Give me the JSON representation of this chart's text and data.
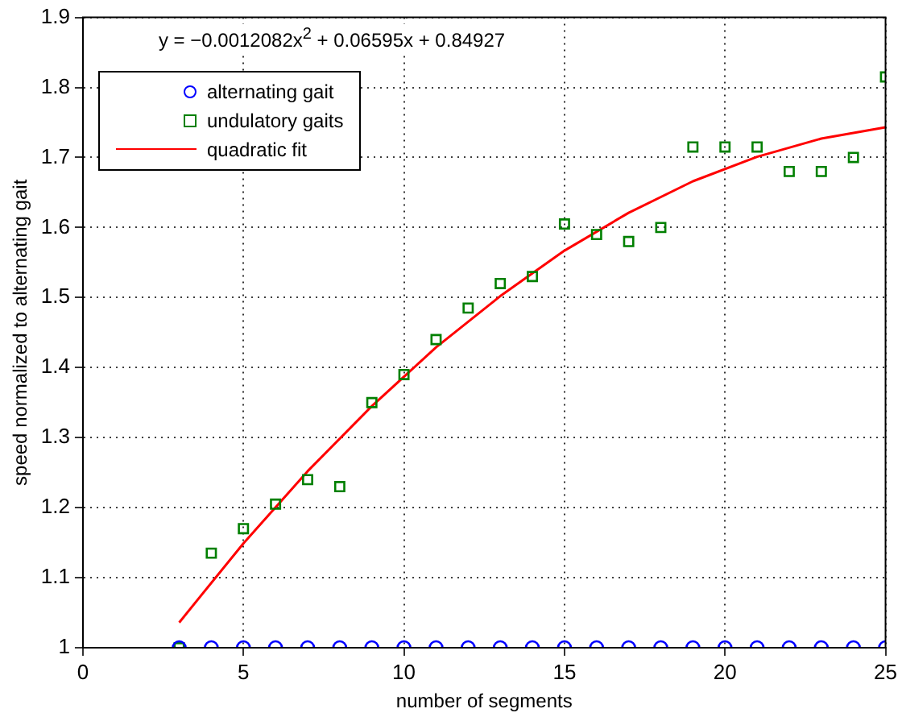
{
  "chart_data": {
    "type": "scatter",
    "xlabel": "number of segments",
    "ylabel": "speed normalized to alternating gait",
    "xlim": [
      0,
      25
    ],
    "xticks": [
      0,
      5,
      10,
      15,
      20,
      25
    ],
    "ylim": [
      1,
      1.9
    ],
    "yticks": [
      1,
      1.1,
      1.2,
      1.3,
      1.4,
      1.5,
      1.6,
      1.7,
      1.8,
      1.9
    ],
    "grid": true,
    "legend": "top left",
    "annotations": [
      "y = −0.0012082x$^{2}$ + 0.06595x + 0.84927"
    ],
    "series": [
      {
        "name": "alternating gait",
        "type": "scatter",
        "marker": "circle",
        "color": "#0000ff",
        "x": [
          3,
          4,
          5,
          6,
          7,
          8,
          9,
          10,
          11,
          12,
          13,
          14,
          15,
          16,
          17,
          18,
          19,
          20,
          21,
          22,
          23,
          24,
          25
        ],
        "values": [
          1,
          1,
          1,
          1,
          1,
          1,
          1,
          1,
          1,
          1,
          1,
          1,
          1,
          1,
          1,
          1,
          1,
          1,
          1,
          1,
          1,
          1,
          1
        ]
      },
      {
        "name": "undulatory gaits",
        "type": "scatter",
        "marker": "square",
        "color": "#008000",
        "x": [
          3,
          4,
          5,
          6,
          7,
          8,
          9,
          10,
          11,
          12,
          13,
          14,
          15,
          16,
          17,
          18,
          19,
          20,
          21,
          22,
          23,
          24,
          25
        ],
        "values": [
          1.0,
          1.135,
          1.17,
          1.205,
          1.24,
          1.23,
          1.35,
          1.39,
          1.44,
          1.485,
          1.52,
          1.53,
          1.605,
          1.59,
          1.58,
          1.6,
          1.715,
          1.715,
          1.715,
          1.68,
          1.68,
          1.7,
          1.815
        ]
      },
      {
        "name": "quadratic fit",
        "type": "line",
        "marker": "none",
        "line_style": "solid",
        "color": "#ff0000",
        "x": [
          3,
          5,
          7,
          9,
          11,
          13,
          15,
          17,
          19,
          21,
          23,
          25
        ],
        "values": [
          1.036,
          1.149,
          1.252,
          1.345,
          1.429,
          1.502,
          1.567,
          1.621,
          1.666,
          1.701,
          1.727,
          1.743
        ]
      }
    ]
  }
}
